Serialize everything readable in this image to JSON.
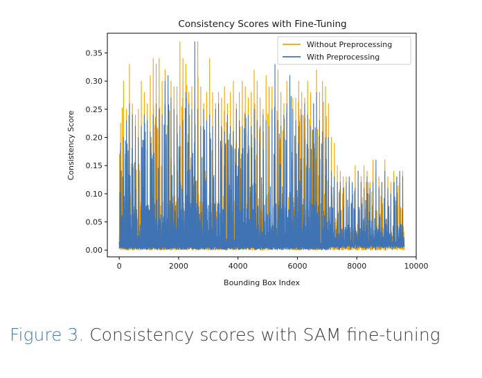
{
  "chart_data": {
    "type": "line",
    "title": "Consistency Scores with Fine-Tuning",
    "xlabel": "Bounding Box Index",
    "ylabel": "Consistency Score",
    "xlim": [
      -400,
      10000
    ],
    "ylim": [
      -0.012,
      0.385
    ],
    "xticks": [
      0,
      2000,
      4000,
      6000,
      8000,
      10000
    ],
    "xtick_labels": [
      "0",
      "2000",
      "4000",
      "6000",
      "8000",
      "10000"
    ],
    "yticks": [
      0.0,
      0.05,
      0.1,
      0.15,
      0.2,
      0.25,
      0.3,
      0.35
    ],
    "ytick_labels": [
      "0.00",
      "0.05",
      "0.10",
      "0.15",
      "0.20",
      "0.25",
      "0.30",
      "0.35"
    ],
    "grid": false,
    "legend_position": "top-right",
    "series": [
      {
        "name": "Without Preprocessing",
        "color": "#f5a200",
        "x_start": 0,
        "x_step": 100,
        "values": [
          0.225,
          0.3,
          0.25,
          0.33,
          0.26,
          0.24,
          0.25,
          0.3,
          0.28,
          0.26,
          0.31,
          0.34,
          0.33,
          0.34,
          0.3,
          0.32,
          0.28,
          0.3,
          0.29,
          0.29,
          0.37,
          0.34,
          0.33,
          0.28,
          0.29,
          0.26,
          0.37,
          0.29,
          0.26,
          0.28,
          0.34,
          0.28,
          0.26,
          0.28,
          0.27,
          0.29,
          0.26,
          0.28,
          0.3,
          0.26,
          0.28,
          0.3,
          0.29,
          0.27,
          0.28,
          0.32,
          0.3,
          0.27,
          0.25,
          0.31,
          0.29,
          0.29,
          0.27,
          0.32,
          0.28,
          0.26,
          0.3,
          0.29,
          0.27,
          0.27,
          0.3,
          0.28,
          0.27,
          0.3,
          0.28,
          0.26,
          0.32,
          0.28,
          0.3,
          0.29,
          0.26,
          0.2,
          0.19,
          0.15,
          0.14,
          0.13,
          0.13,
          0.12,
          0.12,
          0.15,
          0.14,
          0.13,
          0.15,
          0.14,
          0.12,
          0.16,
          0.14,
          0.13,
          0.12,
          0.16,
          0.13,
          0.12,
          0.14,
          0.13,
          0.12,
          0.14
        ]
      },
      {
        "name": "With Preprocessing",
        "color": "#3f73b3",
        "x_start": 0,
        "x_step": 100,
        "values": [
          0.19,
          0.2,
          0.23,
          0.26,
          0.24,
          0.22,
          0.2,
          0.22,
          0.24,
          0.23,
          0.21,
          0.24,
          0.26,
          0.25,
          0.24,
          0.3,
          0.31,
          0.27,
          0.25,
          0.24,
          0.22,
          0.23,
          0.28,
          0.26,
          0.25,
          0.37,
          0.25,
          0.22,
          0.25,
          0.23,
          0.24,
          0.22,
          0.25,
          0.26,
          0.22,
          0.21,
          0.24,
          0.22,
          0.21,
          0.25,
          0.23,
          0.22,
          0.24,
          0.24,
          0.22,
          0.25,
          0.23,
          0.22,
          0.24,
          0.23,
          0.22,
          0.25,
          0.33,
          0.23,
          0.22,
          0.24,
          0.26,
          0.31,
          0.25,
          0.23,
          0.22,
          0.24,
          0.26,
          0.24,
          0.22,
          0.26,
          0.28,
          0.23,
          0.21,
          0.2,
          0.2,
          0.14,
          0.13,
          0.12,
          0.12,
          0.11,
          0.12,
          0.13,
          0.12,
          0.11,
          0.14,
          0.12,
          0.11,
          0.13,
          0.11,
          0.12,
          0.16,
          0.11,
          0.12,
          0.14,
          0.11,
          0.1,
          0.12,
          0.13,
          0.14,
          0.13
        ]
      }
    ]
  },
  "caption": {
    "label": "Figure 3.",
    "text": "Consistency scores with SAM fine-tuning"
  }
}
